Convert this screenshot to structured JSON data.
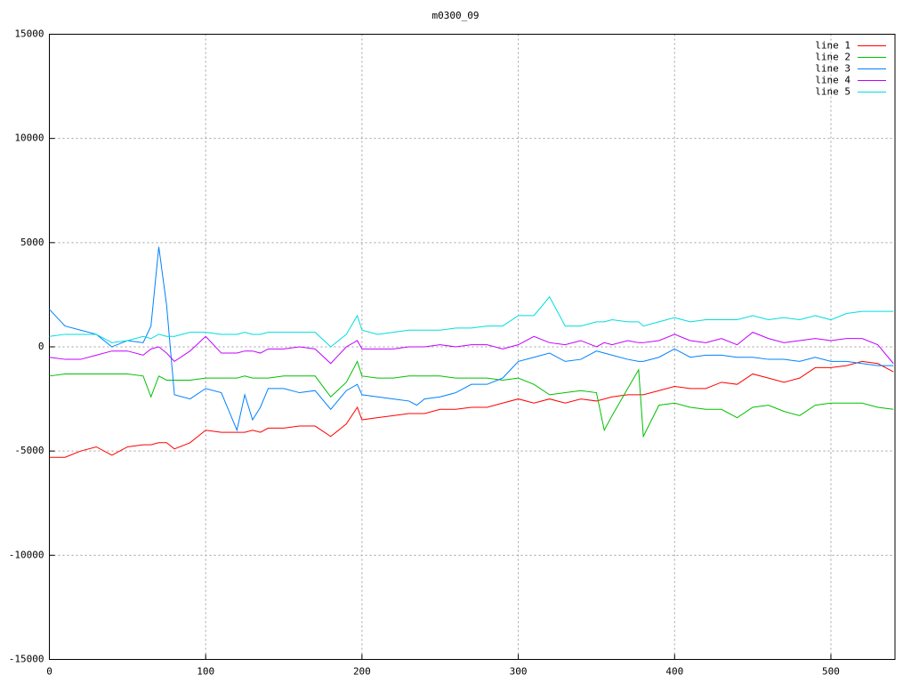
{
  "chart_data": {
    "type": "line",
    "title": "m0300_09",
    "legend": "top-right",
    "grid": true,
    "x": [
      0,
      10,
      20,
      30,
      40,
      50,
      60,
      65,
      70,
      75,
      80,
      90,
      100,
      110,
      120,
      125,
      130,
      135,
      140,
      150,
      160,
      170,
      180,
      190,
      197,
      200,
      210,
      220,
      230,
      235,
      240,
      250,
      260,
      270,
      280,
      290,
      300,
      310,
      320,
      330,
      340,
      350,
      355,
      360,
      370,
      377,
      380,
      390,
      400,
      410,
      420,
      430,
      440,
      450,
      460,
      470,
      480,
      490,
      500,
      510,
      520,
      530,
      540
    ],
    "xlim": [
      0,
      541
    ],
    "xticks": [
      0,
      100,
      200,
      300,
      400,
      500
    ],
    "ylim": [
      -15000,
      15000
    ],
    "yticks": [
      -15000,
      -10000,
      -5000,
      0,
      5000,
      10000,
      15000
    ],
    "series": [
      {
        "name": "line 1",
        "color": "#ff0000",
        "values": [
          -5300,
          -5300,
          -5000,
          -4800,
          -5200,
          -4800,
          -4700,
          -4700,
          -4600,
          -4600,
          -4900,
          -4600,
          -4000,
          -4100,
          -4100,
          -4100,
          -4000,
          -4100,
          -3900,
          -3900,
          -3800,
          -3800,
          -4300,
          -3700,
          -2900,
          -3500,
          -3400,
          -3300,
          -3200,
          -3200,
          -3200,
          -3000,
          -3000,
          -2900,
          -2900,
          -2700,
          -2500,
          -2700,
          -2500,
          -2700,
          -2500,
          -2600,
          -2500,
          -2400,
          -2300,
          -2300,
          -2300,
          -2100,
          -1900,
          -2000,
          -2000,
          -1700,
          -1800,
          -1300,
          -1500,
          -1700,
          -1500,
          -1000,
          -1000,
          -900,
          -700,
          -800,
          -1200
        ]
      },
      {
        "name": "line 2",
        "color": "#00c000",
        "values": [
          -1400,
          -1300,
          -1300,
          -1300,
          -1300,
          -1300,
          -1400,
          -2400,
          -1400,
          -1600,
          -1600,
          -1600,
          -1500,
          -1500,
          -1500,
          -1400,
          -1500,
          -1500,
          -1500,
          -1400,
          -1400,
          -1400,
          -2400,
          -1700,
          -700,
          -1400,
          -1500,
          -1500,
          -1400,
          -1400,
          -1400,
          -1400,
          -1500,
          -1500,
          -1500,
          -1600,
          -1500,
          -1800,
          -2300,
          -2200,
          -2100,
          -2200,
          -4000,
          -3300,
          -2000,
          -1100,
          -4300,
          -2800,
          -2700,
          -2900,
          -3000,
          -3000,
          -3400,
          -2900,
          -2800,
          -3100,
          -3300,
          -2800,
          -2700,
          -2700,
          -2700,
          -2900,
          -3000
        ]
      },
      {
        "name": "line 3",
        "color": "#0080ff",
        "values": [
          1800,
          1000,
          800,
          600,
          0,
          300,
          200,
          1000,
          4800,
          2000,
          -2300,
          -2500,
          -2000,
          -2200,
          -4000,
          -2300,
          -3500,
          -2900,
          -2000,
          -2000,
          -2200,
          -2100,
          -3000,
          -2100,
          -1800,
          -2300,
          -2400,
          -2500,
          -2600,
          -2800,
          -2500,
          -2400,
          -2200,
          -1800,
          -1800,
          -1500,
          -700,
          -500,
          -300,
          -700,
          -600,
          -200,
          -300,
          -400,
          -600,
          -700,
          -700,
          -500,
          -100,
          -500,
          -400,
          -400,
          -500,
          -500,
          -600,
          -600,
          -700,
          -500,
          -700,
          -700,
          -800,
          -900,
          -900
        ]
      },
      {
        "name": "line 4",
        "color": "#c000ff",
        "values": [
          -500,
          -600,
          -600,
          -400,
          -200,
          -200,
          -400,
          -100,
          0,
          -300,
          -700,
          -200,
          500,
          -300,
          -300,
          -200,
          -200,
          -300,
          -100,
          -100,
          0,
          -100,
          -800,
          0,
          300,
          -100,
          -100,
          -100,
          0,
          0,
          0,
          100,
          0,
          100,
          100,
          -100,
          100,
          500,
          200,
          100,
          300,
          0,
          200,
          100,
          300,
          200,
          200,
          300,
          600,
          300,
          200,
          400,
          100,
          700,
          400,
          200,
          300,
          400,
          300,
          400,
          400,
          100,
          -800
        ]
      },
      {
        "name": "line 5",
        "color": "#00dddd",
        "values": [
          500,
          600,
          600,
          600,
          200,
          300,
          500,
          400,
          600,
          500,
          500,
          700,
          700,
          600,
          600,
          700,
          600,
          600,
          700,
          700,
          700,
          700,
          0,
          600,
          1500,
          800,
          600,
          700,
          800,
          800,
          800,
          800,
          900,
          900,
          1000,
          1000,
          1500,
          1500,
          2400,
          1000,
          1000,
          1200,
          1200,
          1300,
          1200,
          1200,
          1000,
          1200,
          1400,
          1200,
          1300,
          1300,
          1300,
          1500,
          1300,
          1400,
          1300,
          1500,
          1300,
          1600,
          1700,
          1700,
          1700
        ]
      }
    ]
  }
}
